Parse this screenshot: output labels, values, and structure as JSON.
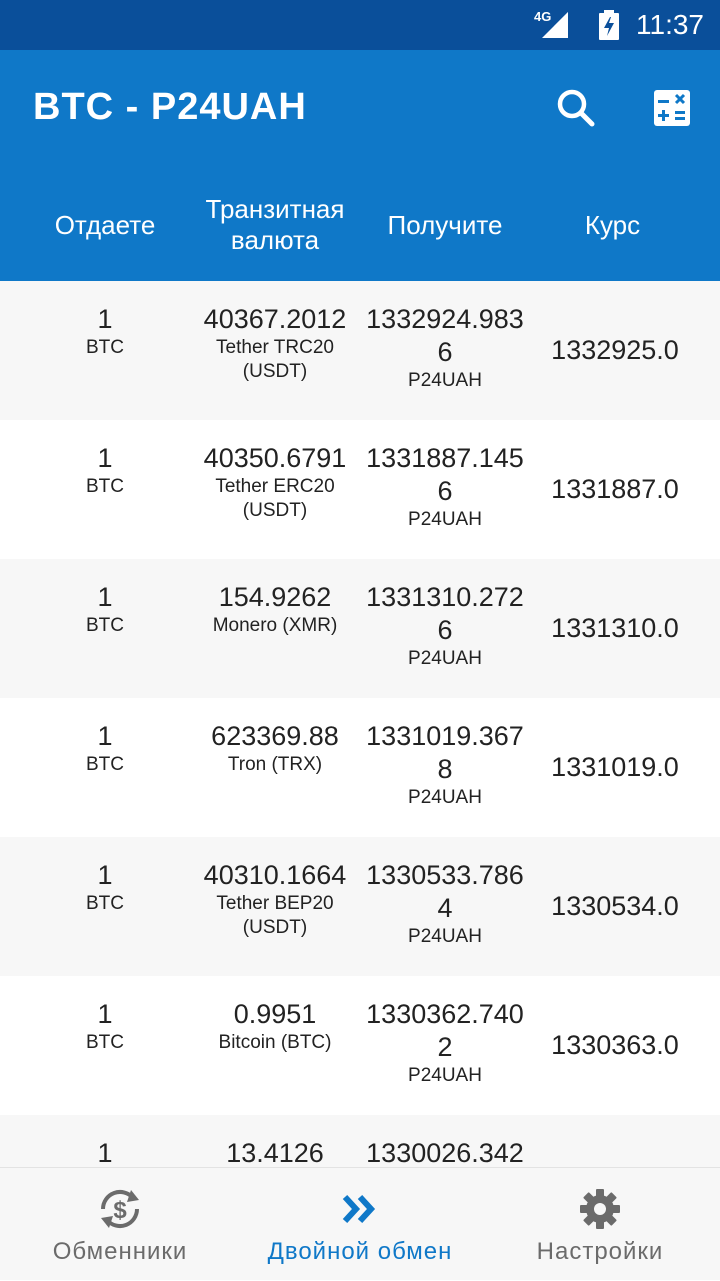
{
  "status_bar": {
    "network": "4G",
    "time": "11:37"
  },
  "app_bar": {
    "title": "BTC - P24UAH",
    "columns": {
      "give": "Отдаете",
      "transit": "Транзитная валюта",
      "get": "Получите",
      "rate": "Курс"
    }
  },
  "rows": [
    {
      "give_amount": "1",
      "give_currency": "BTC",
      "transit_amount": "40367.2012",
      "transit_currency": "Tether TRC20 (USDT)",
      "get_amount": "1332924.9836",
      "get_currency": "P24UAH",
      "rate": "1332925.0"
    },
    {
      "give_amount": "1",
      "give_currency": "BTC",
      "transit_amount": "40350.6791",
      "transit_currency": "Tether ERC20 (USDT)",
      "get_amount": "1331887.1456",
      "get_currency": "P24UAH",
      "rate": "1331887.0"
    },
    {
      "give_amount": "1",
      "give_currency": "BTC",
      "transit_amount": "154.9262",
      "transit_currency": "Monero (XMR)",
      "get_amount": "1331310.2726",
      "get_currency": "P24UAH",
      "rate": "1331310.0"
    },
    {
      "give_amount": "1",
      "give_currency": "BTC",
      "transit_amount": "623369.88",
      "transit_currency": "Tron (TRX)",
      "get_amount": "1331019.3678",
      "get_currency": "P24UAH",
      "rate": "1331019.0"
    },
    {
      "give_amount": "1",
      "give_currency": "BTC",
      "transit_amount": "40310.1664",
      "transit_currency": "Tether BEP20 (USDT)",
      "get_amount": "1330533.7864",
      "get_currency": "P24UAH",
      "rate": "1330534.0"
    },
    {
      "give_amount": "1",
      "give_currency": "BTC",
      "transit_amount": "0.9951",
      "transit_currency": "Bitcoin (BTC)",
      "get_amount": "1330362.7402",
      "get_currency": "P24UAH",
      "rate": "1330363.0"
    },
    {
      "give_amount": "1",
      "give_currency": "",
      "transit_amount": "13.4126",
      "transit_currency": "",
      "get_amount": "1330026.342",
      "get_currency": "",
      "rate": ""
    }
  ],
  "bottom_nav": {
    "items": [
      {
        "label": "Обменники",
        "icon": "exchange-dollar-icon"
      },
      {
        "label": "Двойной обмен",
        "icon": "double-chevron-right-icon"
      },
      {
        "label": "Настройки",
        "icon": "gear-icon"
      }
    ]
  },
  "colors": {
    "primary": "#0f78c8",
    "status_bar": "#0a4f9a",
    "row_alt": "#f7f7f7"
  }
}
